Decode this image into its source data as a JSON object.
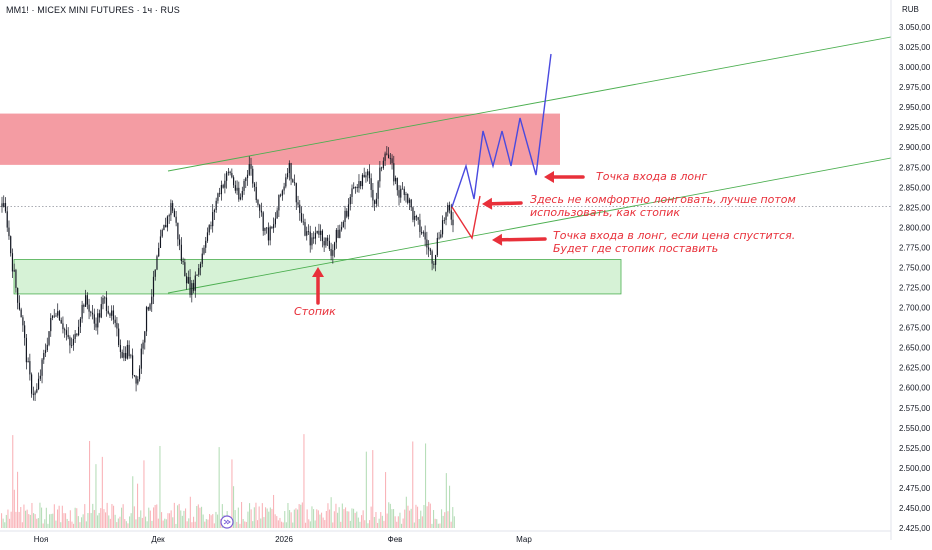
{
  "header": {
    "title": "MM1! · MICEX MINI FUTURES · 1ч · RUS",
    "currency": "RUB"
  },
  "colors": {
    "resistance_zone": "#f28b93",
    "support_zone": "#d6f2d6",
    "support_zone_border": "#4caf50",
    "channel": "#4caf50",
    "candle": "#131722",
    "forecast_blue": "#4a4adf",
    "forecast_red": "#e8303a",
    "annotation": "#e8303a",
    "volume_up": "#a5d6a7",
    "volume_down": "#f7a1a8"
  },
  "chart_data": {
    "type": "candlestick",
    "ylim": [
      2425,
      3075
    ],
    "y_ticks": [
      "3.050,00",
      "3.025,00",
      "3.000,00",
      "2.975,00",
      "2.950,00",
      "2.925,00",
      "2.900,00",
      "2.875,00",
      "2.850,00",
      "2.825,00",
      "2.800,00",
      "2.775,00",
      "2.750,00",
      "2.725,00",
      "2.700,00",
      "2.675,00",
      "2.650,00",
      "2.625,00",
      "2.600,00",
      "2.575,00",
      "2.550,00",
      "2.525,00",
      "2.500,00",
      "2.475,00",
      "2.450,00",
      "2.425,00"
    ],
    "x_ticks": [
      "Ноя",
      "Дек",
      "2026",
      "Фев",
      "Мар"
    ],
    "price_path_note": "approximate hourly closes traced from chart",
    "price_path": [
      2830,
      2810,
      2760,
      2720,
      2690,
      2640,
      2600,
      2590,
      2620,
      2650,
      2680,
      2700,
      2690,
      2670,
      2650,
      2660,
      2690,
      2710,
      2700,
      2680,
      2690,
      2710,
      2700,
      2680,
      2660,
      2640,
      2650,
      2620,
      2610,
      2660,
      2700,
      2720,
      2760,
      2790,
      2810,
      2830,
      2800,
      2760,
      2740,
      2720,
      2740,
      2760,
      2790,
      2800,
      2830,
      2850,
      2860,
      2870,
      2850,
      2830,
      2860,
      2880,
      2850,
      2830,
      2800,
      2790,
      2800,
      2830,
      2850,
      2880,
      2860,
      2830,
      2800,
      2790,
      2780,
      2800,
      2790,
      2780,
      2770,
      2790,
      2800,
      2820,
      2840,
      2860,
      2850,
      2870,
      2850,
      2830,
      2870,
      2900,
      2880,
      2860,
      2840,
      2850,
      2830,
      2810,
      2800,
      2790,
      2770,
      2760,
      2790,
      2810,
      2820,
      2810
    ],
    "zones": [
      {
        "name": "resistance",
        "y_low": 2878,
        "y_high": 2942
      },
      {
        "name": "support",
        "y_low": 2717,
        "y_high": 2760
      }
    ],
    "annotations": [
      {
        "text": "Точка входа в лонг"
      },
      {
        "text": "Здесь не комфортно лонговать, лучше потом использовать, как стопик"
      },
      {
        "text": "Точка входа в лонг, если цена спустится. Будет где стопик поставить"
      },
      {
        "text": "Стопик"
      }
    ]
  },
  "annotations": {
    "entry_long": "Точка входа в лонг",
    "not_comfortable_l1": "Здесь не комфортно лонговать, лучше потом",
    "not_comfortable_l2": "использовать, как стопик",
    "entry_if_drop_l1": "Точка входа в лонг, если цена спустится.",
    "entry_if_drop_l2": "Будет где стопик поставить",
    "stop": "Стопик"
  },
  "x_axis": {
    "nov": "Ноя",
    "dec": "Дек",
    "y2026": "2026",
    "feb": "Фев",
    "mar": "Мар"
  },
  "last_price_line": 2826
}
